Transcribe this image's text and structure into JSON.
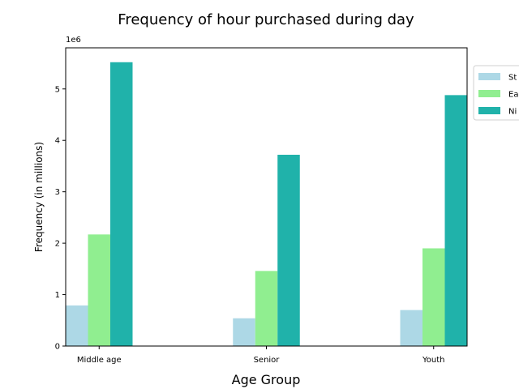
{
  "chart_data": {
    "type": "bar",
    "title": "Frequency of hour purchased during day",
    "xlabel": "Age Group",
    "ylabel": "Frequency (in millions)",
    "y_scale_label": "1e6",
    "categories": [
      "Middle age",
      "Senior",
      "Youth"
    ],
    "series": [
      {
        "name": "St",
        "color": "#add8e6",
        "values": [
          790000,
          540000,
          700000
        ]
      },
      {
        "name": "Ea",
        "color": "#90ee90",
        "values": [
          2170000,
          1460000,
          1900000
        ]
      },
      {
        "name": "Ni",
        "color": "#20b2aa",
        "values": [
          5520000,
          3720000,
          4880000
        ]
      }
    ],
    "ylim": [
      0,
      5800000
    ],
    "yticks": [
      0,
      1000000,
      2000000,
      3000000,
      4000000,
      5000000
    ],
    "ytick_labels": [
      "0",
      "1",
      "2",
      "3",
      "4",
      "5"
    ],
    "grid": false,
    "legend_position": "upper-right-outside"
  }
}
